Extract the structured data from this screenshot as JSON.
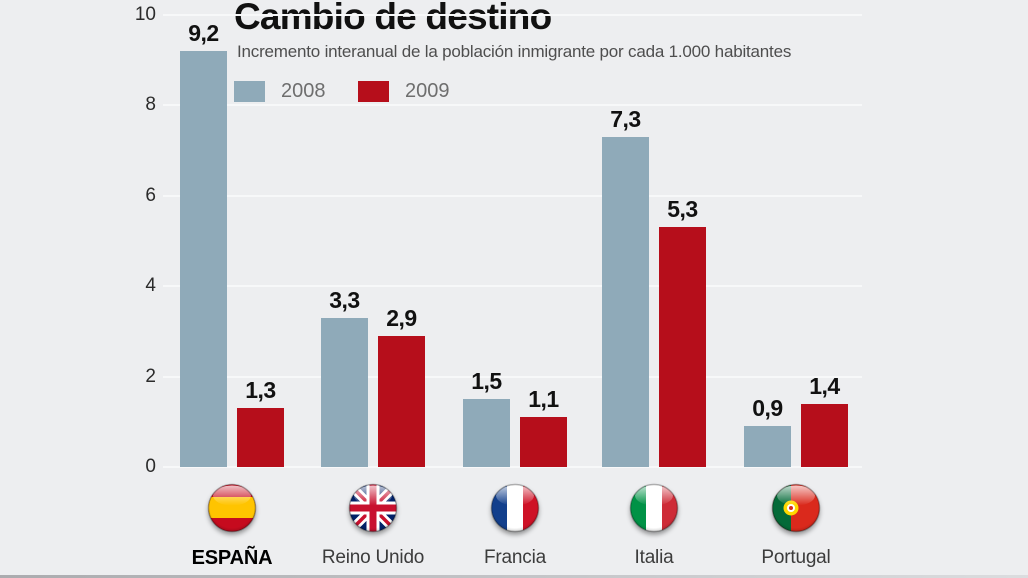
{
  "header": {
    "title": "Cambio de destino",
    "subtitle": "Incremento interanual de la población inmigrante por cada 1.000 habitantes"
  },
  "legend": {
    "items": [
      {
        "label": "2008",
        "color": "#8faab9"
      },
      {
        "label": "2009",
        "color": "#b60e1b"
      }
    ]
  },
  "chart_data": {
    "type": "bar",
    "title": "Cambio de destino",
    "subtitle": "Incremento interanual de la población inmigrante por cada 1.000 habitantes",
    "categories": [
      "ESPAÑA",
      "Reino Unido",
      "Francia",
      "Italia",
      "Portugal"
    ],
    "country_flags": [
      "spain",
      "uk",
      "france",
      "italy",
      "portugal"
    ],
    "series": [
      {
        "name": "2008",
        "color": "#8faab9",
        "values": [
          9.2,
          3.3,
          1.5,
          7.3,
          0.9
        ],
        "labels": [
          "9,2",
          "3,3",
          "1,5",
          "7,3",
          "0,9"
        ]
      },
      {
        "name": "2009",
        "color": "#b60e1b",
        "values": [
          1.3,
          2.9,
          1.1,
          5.3,
          1.4
        ],
        "labels": [
          "1,3",
          "2,9",
          "1,1",
          "5,3",
          "1,4"
        ]
      }
    ],
    "ylim": [
      0,
      10
    ],
    "yticks": [
      "10",
      "8",
      "6",
      "4",
      "2",
      "0"
    ],
    "ytick_values": [
      10,
      8,
      6,
      4,
      2,
      0
    ],
    "grid": true,
    "legend_position": "top-left",
    "xlabel": "",
    "ylabel": ""
  },
  "colors": {
    "background": "#edeef0",
    "gridline": "#f7f8f9",
    "bar_2008": "#8faab9",
    "bar_2009": "#b60e1b",
    "title_text": "#111111",
    "subtitle_text": "#4e4e4e",
    "axis_text": "#2b2b2b",
    "value_text": "#111111",
    "legend_text": "#6e6e6e",
    "country_text": "#3c3c3c",
    "country_text_emphasis": "#000000"
  }
}
